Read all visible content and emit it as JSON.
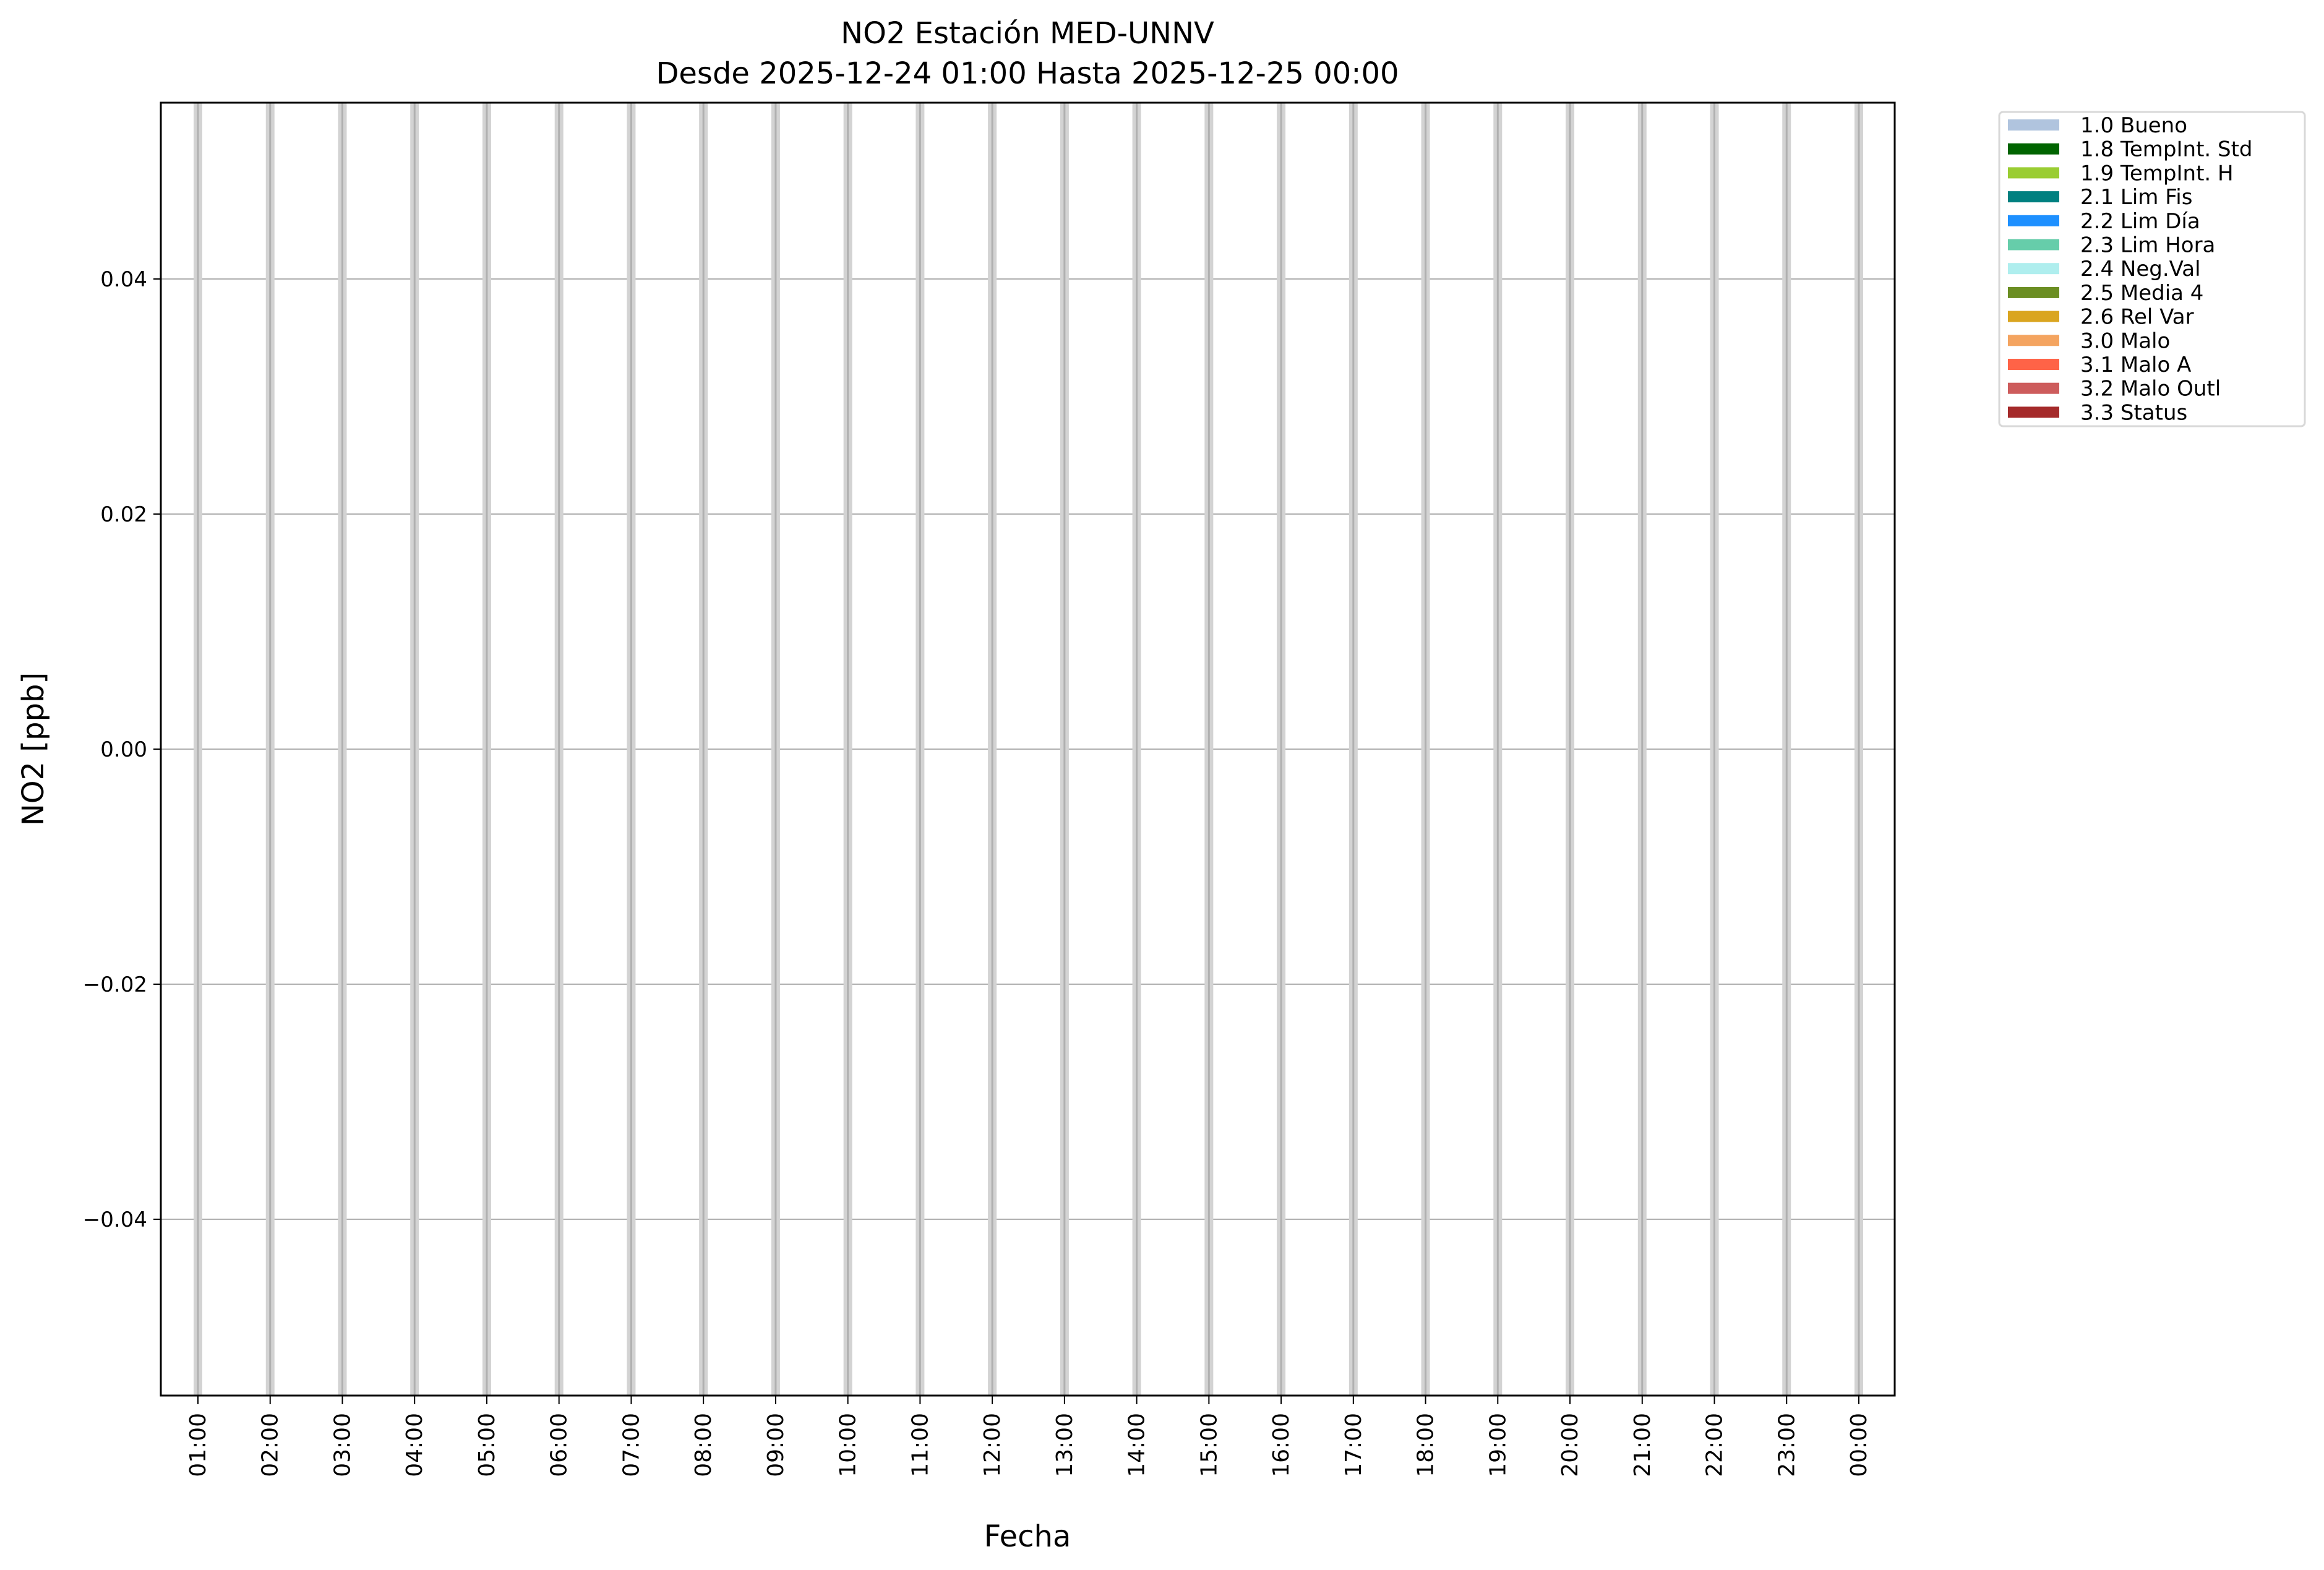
{
  "chart_data": {
    "type": "bar",
    "title": "NO2 Estación MED-UNNV",
    "subtitle": "Desde 2025-12-24 01:00 Hasta 2025-12-25 00:00",
    "xlabel": "Fecha",
    "ylabel": "NO2 [ppb]",
    "ylim": [
      -0.055,
      0.055
    ],
    "yticks": [
      -0.04,
      -0.02,
      0.0,
      0.02,
      0.04
    ],
    "ytick_labels": [
      "−0.04",
      "−0.02",
      "0.00",
      "0.02",
      "0.04"
    ],
    "categories": [
      "01:00",
      "02:00",
      "03:00",
      "04:00",
      "05:00",
      "06:00",
      "07:00",
      "08:00",
      "09:00",
      "10:00",
      "11:00",
      "12:00",
      "13:00",
      "14:00",
      "15:00",
      "16:00",
      "17:00",
      "18:00",
      "19:00",
      "20:00",
      "21:00",
      "22:00",
      "23:00",
      "00:00"
    ],
    "values": [
      0,
      0,
      0,
      0,
      0,
      0,
      0,
      0,
      0,
      0,
      0,
      0,
      0,
      0,
      0,
      0,
      0,
      0,
      0,
      0,
      0,
      0,
      0,
      0
    ],
    "grid": true,
    "band_color": "#d3d3d3",
    "grid_color": "#b0b0b0",
    "legend_placement": "outside-top-right",
    "legend": [
      {
        "label": "1.0 Bueno",
        "color": "#b0c4de"
      },
      {
        "label": "1.8 TempInt. Std",
        "color": "#006400"
      },
      {
        "label": "1.9 TempInt. H",
        "color": "#9acd32"
      },
      {
        "label": "2.1 Lim Fis",
        "color": "#008080"
      },
      {
        "label": "2.2 Lim Día",
        "color": "#1e90ff"
      },
      {
        "label": "2.3 Lim Hora",
        "color": "#66cdaa"
      },
      {
        "label": "2.4 Neg.Val",
        "color": "#afeeee"
      },
      {
        "label": "2.5 Media 4",
        "color": "#6b8e23"
      },
      {
        "label": "2.6 Rel Var",
        "color": "#daa520"
      },
      {
        "label": "3.0 Malo",
        "color": "#f4a460"
      },
      {
        "label": "3.1 Malo A",
        "color": "#ff6347"
      },
      {
        "label": "3.2 Malo Outl",
        "color": "#cd5c5c"
      },
      {
        "label": "3.3 Status",
        "color": "#a52a2a"
      }
    ]
  }
}
